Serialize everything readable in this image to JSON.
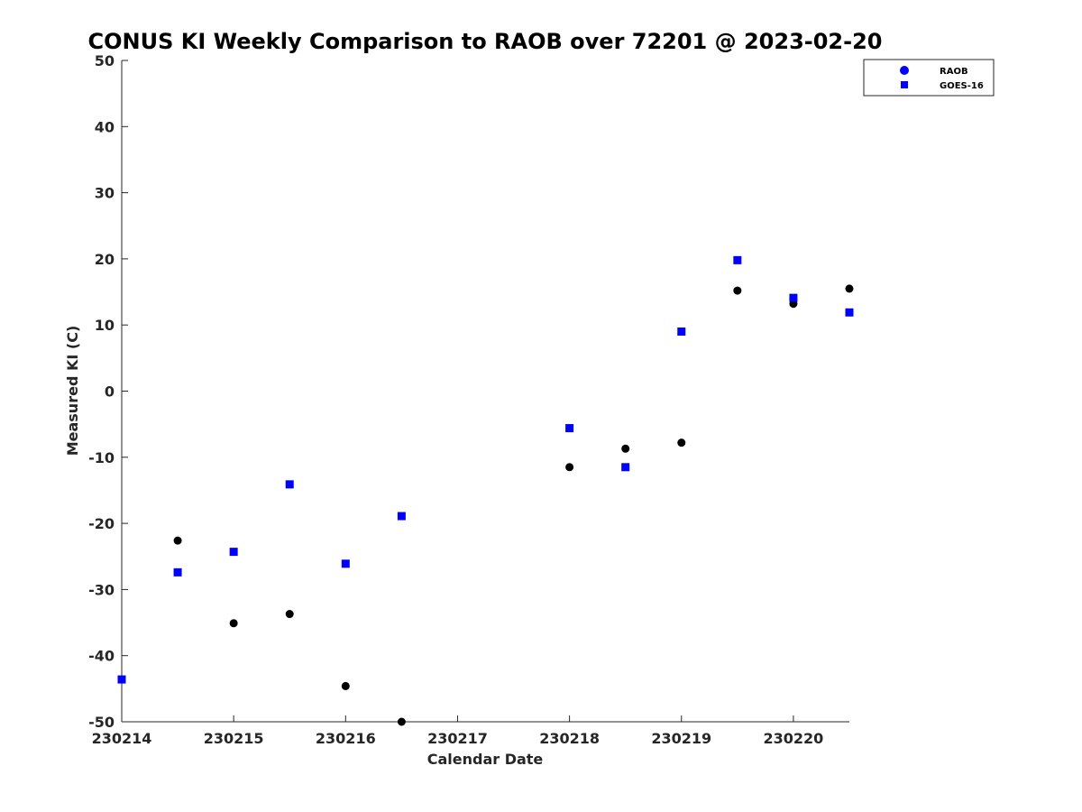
{
  "chart_data": {
    "type": "scatter",
    "title": "CONUS KI Weekly Comparison to RAOB over 72201 @ 2023-02-20",
    "xlabel": "Calendar Date",
    "ylabel": "Measured KI (C)",
    "xlim": [
      "2023-02-14",
      "2023-02-20 12:00"
    ],
    "ylim": [
      -50,
      50
    ],
    "x_tick_labels": [
      "230214",
      "230215",
      "230216",
      "230217",
      "230218",
      "230219",
      "230220"
    ],
    "y_ticks": [
      -50,
      -40,
      -30,
      -20,
      -10,
      0,
      10,
      20,
      30,
      40,
      50
    ],
    "grid": false,
    "legend_position": "top-right",
    "series": [
      {
        "name": "RAOB",
        "marker": "circle",
        "color": "#000000",
        "legend_color": "#0000ff",
        "points": [
          {
            "x": "2023-02-14 12:00",
            "y": -22.6
          },
          {
            "x": "2023-02-15 00:00",
            "y": -35.1
          },
          {
            "x": "2023-02-15 12:00",
            "y": -33.7
          },
          {
            "x": "2023-02-16 00:00",
            "y": -44.6
          },
          {
            "x": "2023-02-16 12:00",
            "y": -50.0
          },
          {
            "x": "2023-02-18 00:00",
            "y": -11.5
          },
          {
            "x": "2023-02-18 12:00",
            "y": -8.7
          },
          {
            "x": "2023-02-19 00:00",
            "y": -7.8
          },
          {
            "x": "2023-02-19 12:00",
            "y": 15.2
          },
          {
            "x": "2023-02-20 00:00",
            "y": 13.2
          },
          {
            "x": "2023-02-20 12:00",
            "y": 15.5
          }
        ]
      },
      {
        "name": "GOES-16",
        "marker": "square",
        "color": "#0000ff",
        "legend_color": "#0000ff",
        "points": [
          {
            "x": "2023-02-14 00:00",
            "y": -43.6
          },
          {
            "x": "2023-02-14 12:00",
            "y": -27.4
          },
          {
            "x": "2023-02-15 00:00",
            "y": -24.3
          },
          {
            "x": "2023-02-15 12:00",
            "y": -14.1
          },
          {
            "x": "2023-02-16 00:00",
            "y": -26.1
          },
          {
            "x": "2023-02-16 12:00",
            "y": -18.9
          },
          {
            "x": "2023-02-18 00:00",
            "y": -5.6
          },
          {
            "x": "2023-02-18 12:00",
            "y": -11.5
          },
          {
            "x": "2023-02-19 00:00",
            "y": 9.0
          },
          {
            "x": "2023-02-19 12:00",
            "y": 19.8
          },
          {
            "x": "2023-02-20 00:00",
            "y": 14.1
          },
          {
            "x": "2023-02-20 12:00",
            "y": 11.9
          }
        ]
      }
    ]
  }
}
